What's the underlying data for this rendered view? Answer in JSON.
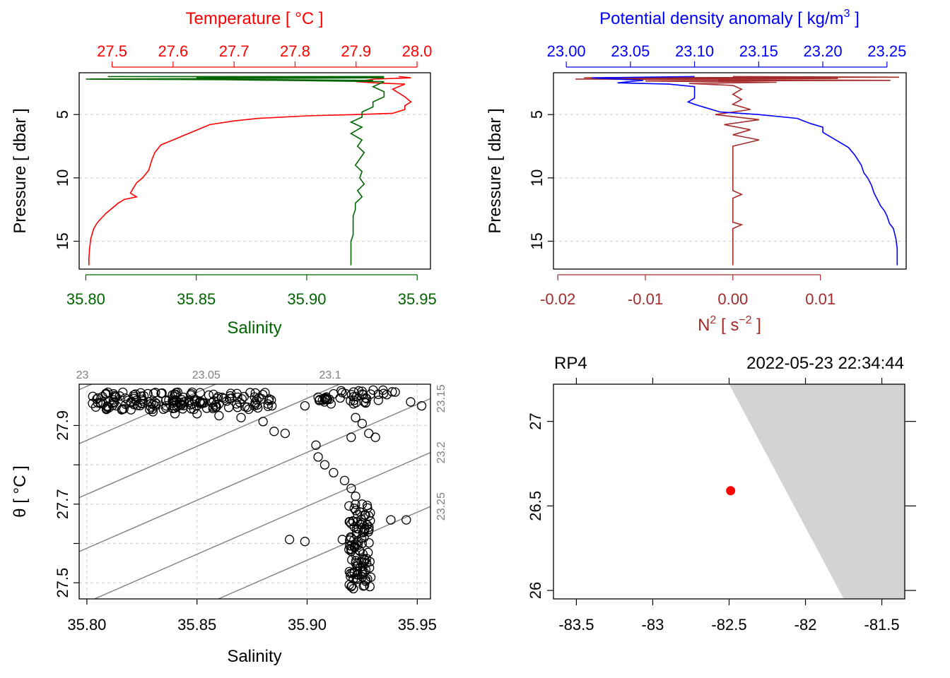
{
  "colors": {
    "temperature": "#ff0000",
    "salinity": "#006400",
    "density": "#0000ff",
    "n2": "#a52a2a",
    "grid": "#d3d3d3",
    "isopycnal": "#808080",
    "coastline_fill": "#d3d3d3",
    "station": "#ff0000"
  },
  "panels": {
    "ts_profile": {
      "top_axis_label": "Temperature [ °C ]",
      "bottom_axis_label": "Salinity",
      "left_axis_label": "Pressure [ dbar ]"
    },
    "density_profile": {
      "top_axis_label_main": "Potential density anomaly [ kg/m",
      "top_axis_label_sup": "3",
      "top_axis_label_end": " ]",
      "bottom_axis_label_main": "N",
      "bottom_axis_label_sup": "2",
      "bottom_axis_label_mid": " [ s",
      "bottom_axis_label_sup2": "−2",
      "bottom_axis_label_end": " ]",
      "left_axis_label": "Pressure [ dbar ]"
    },
    "ts_diagram": {
      "x_axis_label": "Salinity",
      "y_axis_label": "θ [ °C ]"
    },
    "map": {
      "station_name": "RP4",
      "datetime": "2022-05-23 22:34:44"
    }
  },
  "chart_data": [
    {
      "type": "line",
      "title": "",
      "y_axis": {
        "label": "Pressure [ dbar ]",
        "range": [
          17.2,
          1.7
        ],
        "ticks": [
          5,
          10,
          15
        ]
      },
      "x_axis_top": {
        "label": "Temperature [ °C ]",
        "range": [
          27.446,
          28.022
        ],
        "ticks": [
          "27.5",
          "27.6",
          "27.7",
          "27.8",
          "27.9",
          "28.0"
        ]
      },
      "x_axis_bottom": {
        "label": "Salinity",
        "range": [
          35.797,
          35.956
        ],
        "ticks": [
          "35.80",
          "35.85",
          "35.90",
          "35.95"
        ]
      },
      "grid": true,
      "series": [
        {
          "name": "Temperature",
          "axis": "top",
          "points": [
            [
              27.97,
              2.0
            ],
            [
              27.99,
              2.1
            ],
            [
              27.93,
              2.2
            ],
            [
              27.9,
              2.4
            ],
            [
              27.93,
              2.5
            ],
            [
              27.98,
              2.6
            ],
            [
              27.96,
              3.0
            ],
            [
              27.98,
              3.6
            ],
            [
              27.99,
              4.0
            ],
            [
              27.98,
              4.3
            ],
            [
              27.98,
              4.6
            ],
            [
              27.96,
              4.9
            ],
            [
              27.9,
              5.0
            ],
            [
              27.82,
              5.1
            ],
            [
              27.74,
              5.3
            ],
            [
              27.7,
              5.5
            ],
            [
              27.66,
              5.8
            ],
            [
              27.64,
              6.2
            ],
            [
              27.62,
              6.6
            ],
            [
              27.6,
              7.0
            ],
            [
              27.58,
              7.4
            ],
            [
              27.57,
              8.0
            ],
            [
              27.565,
              8.6
            ],
            [
              27.56,
              9.4
            ],
            [
              27.55,
              10.0
            ],
            [
              27.54,
              10.4
            ],
            [
              27.535,
              10.8
            ],
            [
              27.53,
              11.2
            ],
            [
              27.54,
              11.5
            ],
            [
              27.52,
              11.7
            ],
            [
              27.51,
              12.0
            ],
            [
              27.5,
              12.4
            ],
            [
              27.49,
              12.8
            ],
            [
              27.48,
              13.3
            ],
            [
              27.475,
              13.6
            ],
            [
              27.47,
              14.0
            ],
            [
              27.465,
              14.8
            ],
            [
              27.463,
              15.6
            ],
            [
              27.462,
              16.4
            ],
            [
              27.462,
              16.9
            ]
          ]
        },
        {
          "name": "Salinity",
          "axis": "bottom",
          "points": [
            [
              35.81,
              2.0
            ],
            [
              35.935,
              2.0
            ],
            [
              35.85,
              2.1
            ],
            [
              35.935,
              2.1
            ],
            [
              35.8,
              2.2
            ],
            [
              35.93,
              2.3
            ],
            [
              35.84,
              2.2
            ],
            [
              35.935,
              2.4
            ],
            [
              35.93,
              2.8
            ],
            [
              35.935,
              3.2
            ],
            [
              35.935,
              3.6
            ],
            [
              35.93,
              4.0
            ],
            [
              35.93,
              4.4
            ],
            [
              35.925,
              4.8
            ],
            [
              35.925,
              5.2
            ],
            [
              35.92,
              5.6
            ],
            [
              35.925,
              6.0
            ],
            [
              35.92,
              6.5
            ],
            [
              35.925,
              7.0
            ],
            [
              35.923,
              7.5
            ],
            [
              35.926,
              8.0
            ],
            [
              35.924,
              8.5
            ],
            [
              35.922,
              9.0
            ],
            [
              35.925,
              9.5
            ],
            [
              35.924,
              10.0
            ],
            [
              35.926,
              10.5
            ],
            [
              35.923,
              11.0
            ],
            [
              35.925,
              11.5
            ],
            [
              35.922,
              12.0
            ],
            [
              35.922,
              12.5
            ],
            [
              35.921,
              13.0
            ],
            [
              35.921,
              13.5
            ],
            [
              35.921,
              14.0
            ],
            [
              35.921,
              14.5
            ],
            [
              35.92,
              15.0
            ],
            [
              35.92,
              15.5
            ],
            [
              35.92,
              16.0
            ],
            [
              35.92,
              16.5
            ],
            [
              35.92,
              16.9
            ]
          ]
        }
      ]
    },
    {
      "type": "line",
      "title": "",
      "y_axis": {
        "label": "Pressure [ dbar ]",
        "range": [
          17.2,
          1.7
        ],
        "ticks": [
          5,
          10,
          15
        ]
      },
      "x_axis_top": {
        "label": "Potential density anomaly [ kg/m3 ]",
        "range": [
          22.99,
          23.265
        ],
        "ticks": [
          "23.00",
          "23.05",
          "23.10",
          "23.15",
          "23.20",
          "23.25"
        ]
      },
      "x_axis_bottom": {
        "label": "N2 [ s−2 ]",
        "range": [
          -0.0205,
          0.0198
        ],
        "ticks": [
          "-0.02",
          "-0.01",
          "0.00",
          "0.01"
        ]
      },
      "grid": true,
      "series": [
        {
          "name": "Potential density anomaly",
          "axis": "top",
          "points": [
            [
              23.1,
              2.0
            ],
            [
              23.02,
              2.1
            ],
            [
              23.06,
              2.3
            ],
            [
              23.04,
              2.5
            ],
            [
              23.08,
              2.6
            ],
            [
              23.1,
              2.8
            ],
            [
              23.1,
              3.2
            ],
            [
              23.1,
              3.7
            ],
            [
              23.095,
              4.0
            ],
            [
              23.1,
              4.2
            ],
            [
              23.11,
              4.5
            ],
            [
              23.12,
              4.8
            ],
            [
              23.15,
              5.0
            ],
            [
              23.18,
              5.3
            ],
            [
              23.19,
              5.7
            ],
            [
              23.2,
              6.0
            ],
            [
              23.2,
              6.4
            ],
            [
              23.21,
              7.0
            ],
            [
              23.22,
              7.6
            ],
            [
              23.225,
              8.2
            ],
            [
              23.23,
              9.0
            ],
            [
              23.232,
              9.6
            ],
            [
              23.235,
              10.0
            ],
            [
              23.238,
              10.6
            ],
            [
              23.24,
              11.2
            ],
            [
              23.243,
              11.8
            ],
            [
              23.245,
              12.2
            ],
            [
              23.248,
              12.6
            ],
            [
              23.25,
              13.0
            ],
            [
              23.252,
              13.6
            ],
            [
              23.255,
              14.0
            ],
            [
              23.257,
              14.8
            ],
            [
              23.258,
              15.6
            ],
            [
              23.258,
              16.4
            ],
            [
              23.258,
              16.9
            ]
          ]
        },
        {
          "name": "N2",
          "axis": "bottom",
          "points": [
            [
              0.0,
              2.0
            ],
            [
              0.019,
              2.05
            ],
            [
              -0.017,
              2.1
            ],
            [
              0.012,
              2.15
            ],
            [
              -0.018,
              2.2
            ],
            [
              0.018,
              2.3
            ],
            [
              -0.01,
              2.35
            ],
            [
              0.005,
              2.45
            ],
            [
              -0.005,
              2.55
            ],
            [
              0.0,
              2.7
            ],
            [
              0.001,
              3.0
            ],
            [
              0.0,
              3.4
            ],
            [
              0.001,
              3.8
            ],
            [
              0.0,
              4.2
            ],
            [
              0.002,
              4.6
            ],
            [
              -0.002,
              5.0
            ],
            [
              0.003,
              5.4
            ],
            [
              -0.001,
              5.8
            ],
            [
              0.002,
              6.2
            ],
            [
              0.0,
              6.6
            ],
            [
              0.003,
              7.0
            ],
            [
              0.0,
              7.5
            ],
            [
              0.0,
              8.0
            ],
            [
              0.0,
              9.0
            ],
            [
              0.0,
              10.0
            ],
            [
              0.0,
              11.0
            ],
            [
              0.001,
              11.3
            ],
            [
              0.0,
              11.6
            ],
            [
              0.0,
              12.5
            ],
            [
              0.0,
              13.5
            ],
            [
              0.001,
              13.7
            ],
            [
              0.0,
              14.0
            ],
            [
              0.0,
              15.0
            ],
            [
              0.0,
              16.0
            ],
            [
              0.0,
              16.9
            ]
          ]
        }
      ]
    },
    {
      "type": "scatter",
      "title": "",
      "xlabel": "Salinity",
      "ylabel": "θ [ °C ]",
      "xlim": [
        35.7965,
        35.956
      ],
      "ylim": [
        27.459,
        28.005
      ],
      "x_ticks": [
        "35.80",
        "35.85",
        "35.90",
        "35.95"
      ],
      "y_ticks": [
        "27.5",
        "27.7",
        "27.9"
      ],
      "grid": true,
      "isopycnals": [
        {
          "label": "23",
          "value": 23.0,
          "label_side": "top"
        },
        {
          "label": "23.05",
          "value": 23.05,
          "label_side": "top"
        },
        {
          "label": "23.1",
          "value": 23.1,
          "label_side": "top"
        },
        {
          "label": "23.15",
          "value": 23.15,
          "label_side": "right"
        },
        {
          "label": "23.2",
          "value": 23.2,
          "label_side": "right"
        },
        {
          "label": "23.25",
          "value": 23.25,
          "label_side": "right"
        }
      ],
      "points": [
        [
          35.805,
          27.97
        ],
        [
          35.812,
          27.965
        ],
        [
          35.82,
          27.96
        ],
        [
          35.828,
          27.96
        ],
        [
          35.836,
          27.965
        ],
        [
          35.844,
          27.96
        ],
        [
          35.852,
          27.955
        ],
        [
          35.86,
          27.955
        ],
        [
          35.868,
          27.955
        ],
        [
          35.876,
          27.95
        ],
        [
          35.884,
          27.95
        ],
        [
          35.81,
          27.945
        ],
        [
          35.82,
          27.94
        ],
        [
          35.83,
          27.935
        ],
        [
          35.84,
          27.93
        ],
        [
          35.85,
          27.93
        ],
        [
          35.86,
          27.925
        ],
        [
          35.87,
          27.92
        ],
        [
          35.88,
          27.91
        ],
        [
          35.885,
          27.885
        ],
        [
          35.89,
          27.88
        ],
        [
          35.899,
          27.95
        ],
        [
          35.908,
          27.97
        ],
        [
          35.915,
          27.97
        ],
        [
          35.925,
          27.98
        ],
        [
          35.93,
          27.99
        ],
        [
          35.94,
          27.985
        ],
        [
          35.947,
          27.96
        ],
        [
          35.952,
          27.95
        ],
        [
          35.922,
          27.92
        ],
        [
          35.925,
          27.905
        ],
        [
          35.928,
          27.88
        ],
        [
          35.931,
          27.87
        ],
        [
          35.92,
          27.87
        ],
        [
          35.904,
          27.85
        ],
        [
          35.905,
          27.82
        ],
        [
          35.908,
          27.8
        ],
        [
          35.912,
          27.78
        ],
        [
          35.917,
          27.76
        ],
        [
          35.92,
          27.74
        ],
        [
          35.922,
          27.72
        ],
        [
          35.925,
          27.7
        ],
        [
          35.924,
          27.68
        ],
        [
          35.928,
          27.67
        ],
        [
          35.938,
          27.66
        ],
        [
          35.945,
          27.66
        ],
        [
          35.92,
          27.65
        ],
        [
          35.926,
          27.63
        ],
        [
          35.925,
          27.6
        ],
        [
          35.924,
          27.58
        ],
        [
          35.926,
          27.56
        ],
        [
          35.922,
          27.55
        ],
        [
          35.925,
          27.53
        ],
        [
          35.921,
          27.51
        ],
        [
          35.92,
          27.49
        ],
        [
          35.921,
          27.485
        ],
        [
          35.892,
          27.61
        ],
        [
          35.899,
          27.605
        ],
        [
          35.916,
          27.61
        ],
        [
          35.92,
          27.58
        ],
        [
          35.927,
          27.55
        ],
        [
          35.923,
          27.52
        ]
      ]
    },
    {
      "type": "scatter",
      "title": "",
      "xlim": [
        -83.65,
        -81.35
      ],
      "ylim": [
        25.95,
        27.22
      ],
      "x_ticks": [
        "-83.5",
        "-83",
        "-82.5",
        "-82",
        "-81.5"
      ],
      "y_ticks": [
        "26",
        "26.5",
        "27"
      ],
      "grid": false,
      "station": {
        "lon": -82.49,
        "lat": 26.59
      },
      "coastline": [
        [
          -82.5,
          27.22
        ],
        [
          -81.35,
          27.22
        ],
        [
          -81.35,
          25.95
        ],
        [
          -81.75,
          25.95
        ]
      ]
    }
  ]
}
